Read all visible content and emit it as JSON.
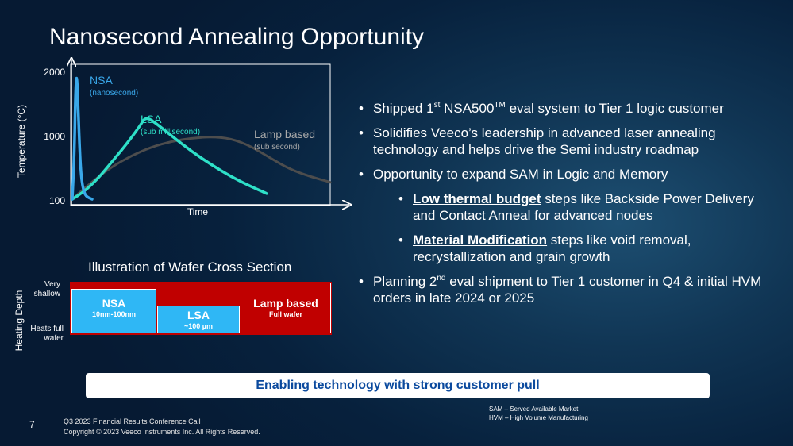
{
  "slide": {
    "title": "Nanosecond Annealing Opportunity",
    "page_number": "7",
    "footer_line1": "Q3 2023 Financial Results Conference Call",
    "footer_line2": "Copyright © 2023 Veeco Instruments Inc. All Rights Reserved."
  },
  "chart_data": {
    "type": "line",
    "ylabel": "Temperature (°C)",
    "xlabel": "Time",
    "y_ticks": [
      "2000",
      "1000",
      "100"
    ],
    "series": [
      {
        "name": "NSA",
        "sublabel": "(nanosecond)",
        "color": "#3aa8ea",
        "x": [
          0.0,
          0.05,
          0.08,
          0.11,
          0.14,
          0.18,
          0.22,
          0.27,
          0.34,
          0.5
        ],
        "y": [
          100,
          700,
          1650,
          2000,
          1600,
          900,
          450,
          250,
          140,
          100
        ]
      },
      {
        "name": "LSA",
        "sublabel": "(sub millisecond)",
        "color": "#2ee0c8",
        "x": [
          0.0,
          0.25,
          0.5,
          0.75,
          1.0,
          1.25,
          1.5,
          1.7,
          1.85,
          2.1,
          2.5,
          3.0,
          3.5,
          4.0,
          4.5,
          4.9
        ],
        "y": [
          100,
          190,
          310,
          460,
          630,
          800,
          980,
          1150,
          1300,
          1200,
          1000,
          780,
          590,
          420,
          280,
          180
        ]
      },
      {
        "name": "Lamp based",
        "sublabel": "(sub second)",
        "color": "#4d4d4d",
        "x": [
          0.0,
          0.5,
          1.0,
          1.5,
          2.0,
          2.5,
          3.0,
          3.5,
          4.0,
          4.5,
          5.0,
          5.5,
          6.0,
          6.5
        ],
        "y": [
          100,
          350,
          560,
          720,
          840,
          920,
          965,
          985,
          960,
          850,
          680,
          520,
          420,
          340
        ]
      }
    ]
  },
  "bullets": [
    {
      "pre": "Shipped 1",
      "sup1": "st",
      "mid": " NSA500",
      "sup2": "TM",
      "post": " eval system to Tier 1 logic customer"
    },
    {
      "text": "Solidifies Veeco’s leadership in advanced laser annealing technology and helps drive the Semi industry roadmap"
    },
    {
      "text": "Opportunity to expand SAM in Logic and Memory"
    },
    {
      "em": "Low thermal budget",
      "rest": " steps like Backside Power Delivery and Contact Anneal for advanced nodes"
    },
    {
      "em": "Material Modification",
      "rest": " steps like void removal, recrystallization and grain growth"
    },
    {
      "pre": "Planning 2",
      "sup1": "nd",
      "post": " eval shipment to Tier 1 customer in Q4 & initial HVM orders in late 2024 or 2025"
    }
  ],
  "cross_section": {
    "title": "Illustration of Wafer Cross Section",
    "axis_label": "Heating Depth",
    "top_label_1": "Very",
    "top_label_2": "shallow",
    "bottom_label_1": "Heats full",
    "bottom_label_2": "wafer",
    "nsa_label": "NSA",
    "nsa_depth": "10nm-100nm",
    "lsa_label": "LSA",
    "lsa_depth": "~100 µm",
    "lamp_label": "Lamp based",
    "lamp_depth": "Full wafer",
    "colors": {
      "heated": "#c00000",
      "unheated": "#2fb7f5"
    }
  },
  "banner": {
    "text": "Enabling technology with strong customer pull"
  },
  "abbreviations": {
    "sam": "SAM – Served Available Market",
    "hvm": "HVM – High Volume Manufacturing"
  }
}
